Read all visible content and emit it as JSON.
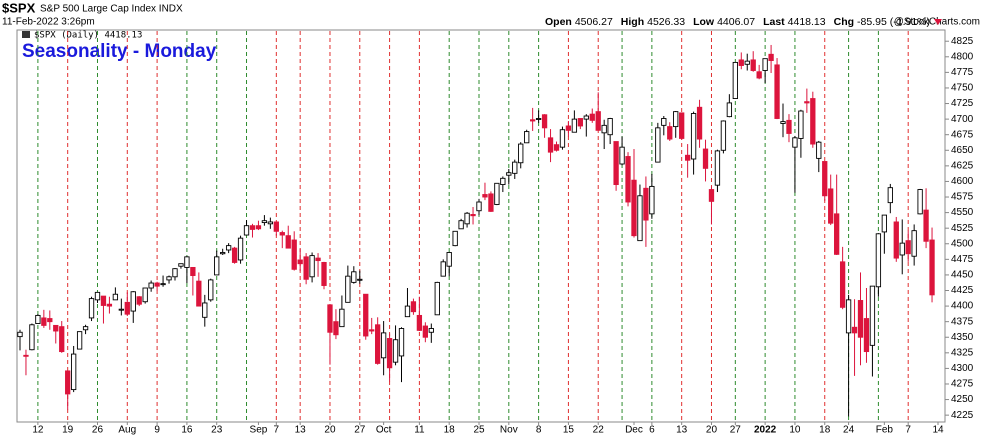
{
  "chart_data": {
    "type": "candlestick",
    "symbol": "$SPX",
    "name": "S&P 500 Large Cap Index INDX",
    "datetime": "11-Feb-2022 3:26pm",
    "quote": [
      {
        "label": "Open",
        "value": "4506.27"
      },
      {
        "label": "High",
        "value": "4526.33"
      },
      {
        "label": "Low",
        "value": "4406.07"
      },
      {
        "label": "Last",
        "value": "4418.13"
      },
      {
        "label": "Chg",
        "value": "-85.95 (-1.91%)"
      }
    ],
    "source": "@StockCharts.com",
    "legend": "$SPX (Daily) 4418.13",
    "title": "Seasonality - Monday",
    "up_color": "#000000",
    "down_color": "#dc143c",
    "categories": [
      null,
      null,
      null,
      "12",
      null,
      null,
      null,
      null,
      "19",
      null,
      null,
      null,
      null,
      "26",
      null,
      null,
      null,
      null,
      "Aug",
      null,
      null,
      null,
      null,
      "9",
      null,
      null,
      null,
      null,
      "16",
      null,
      null,
      null,
      null,
      "23",
      null,
      null,
      null,
      null,
      null,
      null,
      "Sep",
      null,
      null,
      "7",
      null,
      null,
      null,
      "13",
      null,
      null,
      null,
      null,
      "20",
      null,
      null,
      null,
      null,
      "27",
      null,
      null,
      null,
      "Oct",
      null,
      null,
      null,
      null,
      null,
      "11",
      null,
      null,
      null,
      null,
      "18",
      null,
      null,
      null,
      null,
      "25",
      null,
      null,
      null,
      null,
      "Nov",
      null,
      null,
      null,
      null,
      "8",
      null,
      null,
      null,
      null,
      "15",
      null,
      null,
      null,
      null,
      "22",
      null,
      null,
      null,
      null,
      null,
      "Dec",
      null,
      null,
      "6",
      null,
      null,
      null,
      null,
      "13",
      null,
      null,
      null,
      null,
      "20",
      null,
      null,
      null,
      "27",
      null,
      null,
      null,
      null,
      "2022",
      null,
      null,
      null,
      null,
      "10",
      null,
      null,
      null,
      null,
      "18",
      null,
      null,
      null,
      "24",
      null,
      null,
      null,
      null,
      null,
      "Feb",
      null,
      null,
      null,
      "7",
      null,
      null,
      null,
      null,
      "14"
    ],
    "vline_colors": [
      null,
      null,
      null,
      "#2e8b2e",
      null,
      null,
      null,
      null,
      "#e03030",
      null,
      null,
      null,
      null,
      "#2e8b2e",
      null,
      null,
      null,
      null,
      "#e03030",
      null,
      null,
      null,
      null,
      "#e03030",
      null,
      null,
      null,
      null,
      "#2e8b2e",
      null,
      null,
      null,
      null,
      "#2e8b2e",
      null,
      null,
      null,
      null,
      "#2e8b2e",
      null,
      null,
      null,
      null,
      "#e03030",
      null,
      null,
      null,
      "#e03030",
      null,
      null,
      null,
      null,
      "#e03030",
      null,
      null,
      null,
      null,
      "#e03030",
      null,
      null,
      null,
      null,
      "#e03030",
      null,
      null,
      null,
      null,
      "#e03030",
      null,
      null,
      null,
      null,
      "#2e8b2e",
      null,
      null,
      null,
      null,
      "#2e8b2e",
      null,
      null,
      null,
      null,
      "#2e8b2e",
      null,
      null,
      null,
      null,
      "#2e8b2e",
      null,
      null,
      null,
      null,
      "#e03030",
      null,
      null,
      null,
      null,
      "#e03030",
      null,
      null,
      null,
      "#2e8b2e",
      null,
      null,
      null,
      null,
      "#2e8b2e",
      null,
      null,
      null,
      null,
      "#e03030",
      null,
      null,
      null,
      null,
      "#e03030",
      null,
      null,
      null,
      "#2e8b2e",
      null,
      null,
      null,
      null,
      "#2e8b2e",
      null,
      null,
      null,
      null,
      "#2e8b2e",
      null,
      null,
      null,
      null,
      "#e03030",
      null,
      null,
      null,
      "#2e8b2e",
      null,
      null,
      null,
      null,
      "#2e8b2e",
      null,
      null,
      null,
      null,
      "#e03030",
      null,
      null,
      null,
      null,
      null
    ],
    "open": [
      4351,
      4321,
      4330,
      4372,
      4381,
      4380,
      4369,
      4367,
      4296,
      4266,
      4331,
      4362,
      4381,
      4410,
      4416,
      4403,
      4410,
      4395,
      4406,
      4392,
      4415,
      4407,
      4429,
      4437,
      4436,
      4442,
      4447,
      4464,
      4462,
      4462,
      4440,
      4382,
      4410,
      4450,
      4484,
      4490,
      4493,
      4474,
      4514,
      4529,
      4529,
      4534,
      4532,
      4535,
      4518,
      4513,
      4506,
      4474,
      4479,
      4447,
      4477,
      4470,
      4402,
      4375,
      4367,
      4406,
      4438,
      4442,
      4419,
      4362,
      4370,
      4317,
      4348,
      4310,
      4320,
      4383,
      4407,
      4385,
      4368,
      4358,
      4386,
      4448,
      4464,
      4497,
      4524,
      4532,
      4547,
      4553,
      4579,
      4580,
      4563,
      4595,
      4610,
      4613,
      4630,
      4662,
      4699,
      4701,
      4707,
      4670,
      4659,
      4655,
      4689,
      4679,
      4701,
      4700,
      4708,
      4712,
      4678,
      4675,
      4664,
      4628,
      4640,
      4602,
      4505,
      4589,
      4548,
      4631,
      4690,
      4688,
      4688,
      4710,
      4642,
      4636,
      4719,
      4652,
      4587,
      4594,
      4650,
      4704,
      4733,
      4795,
      4788,
      4795,
      4776,
      4778,
      4804,
      4787,
      4693,
      4698,
      4655,
      4669,
      4728,
      4733,
      4637,
      4632,
      4588,
      4548,
      4471,
      4357,
      4366,
      4409,
      4380,
      4337,
      4431,
      4519,
      4566,
      4535,
      4482,
      4505,
      4480,
      4548,
      4554,
      4506,
      null
    ],
    "high": [
      4362,
      4330,
      4372,
      4387,
      4394,
      4393,
      4369,
      4376,
      4296,
      4336,
      4359,
      4370,
      4415,
      4422,
      4416,
      4415,
      4430,
      4412,
      4422,
      4424,
      4416,
      4429,
      4441,
      4439,
      4449,
      4449,
      4461,
      4468,
      4480,
      4462,
      4454,
      4418,
      4444,
      4489,
      4492,
      4501,
      4495,
      4513,
      4538,
      4532,
      4537,
      4546,
      4542,
      4535,
      4521,
      4529,
      4520,
      4492,
      4485,
      4486,
      4485,
      4471,
      4402,
      4395,
      4417,
      4465,
      4464,
      4457,
      4419,
      4381,
      4382,
      4376,
      4356,
      4369,
      4366,
      4429,
      4412,
      4415,
      4374,
      4372,
      4439,
      4475,
      4487,
      4520,
      4540,
      4551,
      4559,
      4572,
      4598,
      4584,
      4597,
      4608,
      4620,
      4635,
      4663,
      4683,
      4718,
      4714,
      4708,
      4684,
      4664,
      4688,
      4697,
      4714,
      4701,
      4708,
      4717,
      4743,
      4699,
      4702,
      4664,
      4672,
      4647,
      4652,
      4595,
      4608,
      4612,
      4694,
      4705,
      4695,
      4713,
      4710,
      4660,
      4712,
      4731,
      4667,
      4592,
      4651,
      4698,
      4740,
      4791,
      4807,
      4805,
      4809,
      4787,
      4797,
      4819,
      4798,
      4725,
      4708,
      4673,
      4715,
      4749,
      4744,
      4665,
      4632,
      4611,
      4611,
      4495,
      4418,
      4411,
      4454,
      4429,
      4432,
      4517,
      4546,
      4596,
      4543,
      4539,
      4521,
      4531,
      4588,
      4589,
      4526,
      null
    ],
    "low": [
      4329,
      4289,
      4329,
      4372,
      4365,
      4362,
      4340,
      4325,
      4234,
      4262,
      4331,
      4355,
      4376,
      4405,
      4372,
      4388,
      4410,
      4385,
      4384,
      4373,
      4400,
      4404,
      4423,
      4425,
      4431,
      4436,
      4441,
      4460,
      4437,
      4417,
      4400,
      4367,
      4407,
      4450,
      4482,
      4485,
      4468,
      4468,
      4514,
      4510,
      4522,
      4529,
      4524,
      4513,
      4493,
      4493,
      4457,
      4456,
      4435,
      4438,
      4447,
      4427,
      4306,
      4347,
      4367,
      4406,
      4436,
      4436,
      4346,
      4355,
      4306,
      4289,
      4279,
      4305,
      4278,
      4383,
      4386,
      4360,
      4342,
      4341,
      4386,
      4448,
      4448,
      4496,
      4524,
      4526,
      4531,
      4546,
      4570,
      4551,
      4562,
      4583,
      4595,
      4604,
      4621,
      4662,
      4681,
      4694,
      4670,
      4631,
      4648,
      4651,
      4672,
      4679,
      4684,
      4672,
      4694,
      4682,
      4652,
      4660,
      4585,
      4626,
      4560,
      4510,
      4505,
      4495,
      4540,
      4631,
      4674,
      4665,
      4670,
      4667,
      4606,
      4611,
      4654,
      4600,
      4531,
      4583,
      4645,
      4703,
      4733,
      4780,
      4778,
      4776,
      4764,
      4758,
      4774,
      4700,
      4671,
      4663,
      4582,
      4638,
      4710,
      4654,
      4615,
      4569,
      4530,
      4482,
      4395,
      4223,
      4288,
      4305,
      4309,
      4287,
      4415,
      4484,
      4549,
      4471,
      4451,
      4471,
      4465,
      4547,
      4493,
      4406,
      null
    ],
    "close": [
      4358,
      4320,
      4370,
      4385,
      4369,
      4375,
      4360,
      4327,
      4259,
      4323,
      4359,
      4367,
      4412,
      4422,
      4401,
      4400,
      4419,
      4395,
      4387,
      4423,
      4403,
      4429,
      4437,
      4432,
      4436,
      4447,
      4460,
      4468,
      4479,
      4449,
      4400,
      4405,
      4442,
      4479,
      4486,
      4497,
      4470,
      4509,
      4529,
      4523,
      4524,
      4537,
      4535,
      4520,
      4514,
      4493,
      4459,
      4468,
      4443,
      4481,
      4473,
      4433,
      4358,
      4354,
      4395,
      4448,
      4455,
      4443,
      4352,
      4360,
      4308,
      4357,
      4301,
      4346,
      4364,
      4400,
      4391,
      4361,
      4350,
      4364,
      4438,
      4471,
      4486,
      4520,
      4537,
      4549,
      4545,
      4567,
      4575,
      4552,
      4597,
      4605,
      4614,
      4631,
      4660,
      4680,
      4697,
      4701,
      4686,
      4647,
      4650,
      4683,
      4682,
      4700,
      4689,
      4705,
      4698,
      4682,
      4690,
      4701,
      4595,
      4655,
      4567,
      4513,
      4577,
      4538,
      4592,
      4686,
      4701,
      4668,
      4712,
      4669,
      4634,
      4709,
      4668,
      4621,
      4568,
      4649,
      4697,
      4726,
      4791,
      4786,
      4793,
      4778,
      4766,
      4797,
      4794,
      4701,
      4696,
      4677,
      4670,
      4713,
      4726,
      4660,
      4663,
      4577,
      4533,
      4483,
      4398,
      4410,
      4357,
      4350,
      4327,
      4432,
      4516,
      4546,
      4590,
      4477,
      4501,
      4484,
      4521,
      4587,
      4504,
      4418,
      null
    ],
    "ylim": [
      4214,
      4843
    ],
    "yticks": [
      4225,
      4250,
      4275,
      4300,
      4325,
      4350,
      4375,
      4400,
      4425,
      4450,
      4475,
      4500,
      4525,
      4550,
      4575,
      4600,
      4625,
      4650,
      4675,
      4700,
      4725,
      4750,
      4775,
      4800,
      4825
    ]
  }
}
